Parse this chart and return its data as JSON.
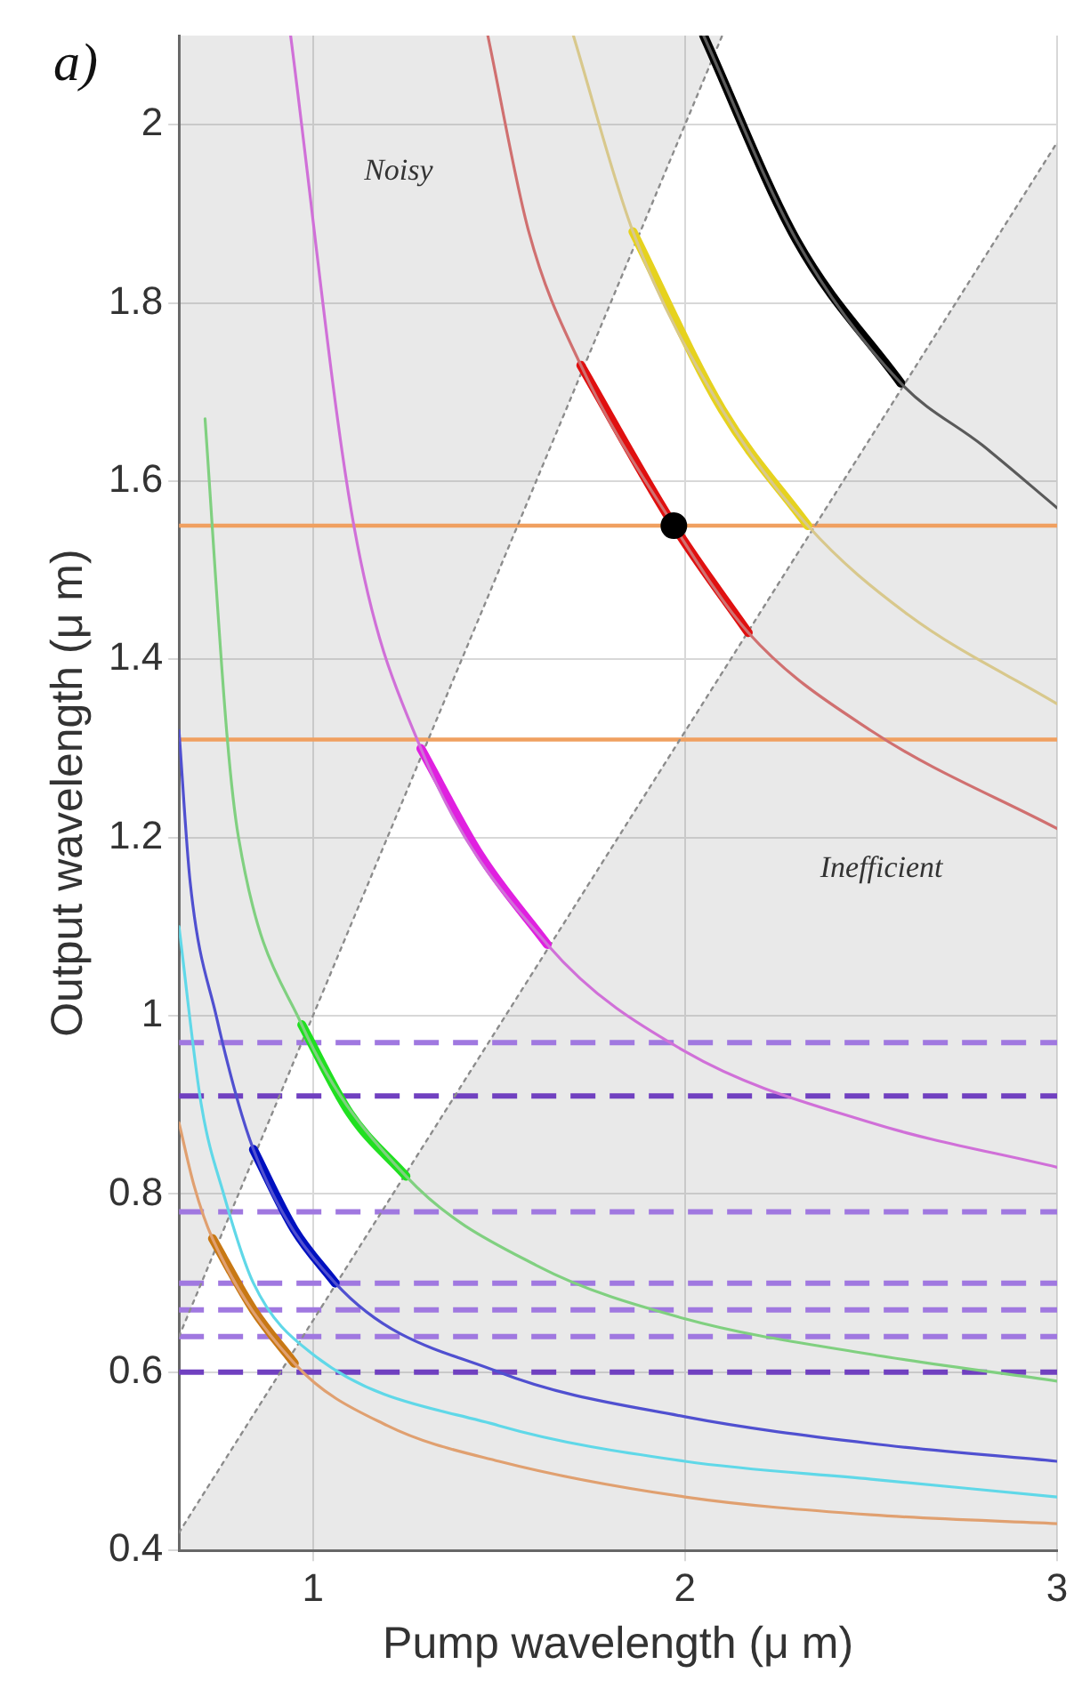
{
  "chart_data": {
    "type": "line",
    "title": "a)",
    "xlabel": "Pump wavelength (μ m)",
    "ylabel": "Output wavelength (μ m)",
    "xlim": [
      0.64,
      3
    ],
    "ylim": [
      0.4,
      2.1
    ],
    "xticks": [
      1,
      2,
      3
    ],
    "yticks": [
      0.4,
      0.6,
      0.8,
      1,
      1.2,
      1.4,
      1.6,
      1.8,
      2
    ],
    "grid": true,
    "legend": false,
    "series": [
      {
        "color": "#8c8c8c",
        "line_style": "dotted",
        "x": [
          0.64,
          2.1
        ],
        "values": [
          0.64,
          2.1
        ],
        "lower": [
          0.64,
          2.1
        ],
        "upper": [
          2.1,
          2.1
        ]
      },
      {
        "color": "#8c8c8c",
        "line_style": "dotted",
        "x": [
          0.64,
          3
        ],
        "values": [
          0.42,
          1.98
        ],
        "lower": [
          0.4,
          0.4
        ],
        "upper": [
          0.42,
          1.98
        ]
      },
      {
        "color": "#5a5a5a",
        "x": [
          2.05,
          2.3,
          2.58,
          2.8,
          3
        ],
        "values": [
          2.1,
          1.87,
          1.71,
          1.64,
          1.57
        ]
      },
      {
        "color": "#d8c88c",
        "x": [
          1.7,
          1.86,
          2.1,
          2.33,
          2.6,
          3
        ],
        "values": [
          2.1,
          1.88,
          1.68,
          1.55,
          1.45,
          1.35
        ]
      },
      {
        "color": "#d07070",
        "x": [
          1.47,
          1.58,
          1.72,
          1.97,
          2.17,
          2.5,
          3
        ],
        "values": [
          2.1,
          1.88,
          1.73,
          1.55,
          1.43,
          1.32,
          1.21
        ]
      },
      {
        "color": "#d070d8",
        "x": [
          0.94,
          1.11,
          1.29,
          1.63,
          2,
          2.5,
          3
        ],
        "values": [
          2.1,
          1.55,
          1.3,
          1.08,
          0.96,
          0.88,
          0.83
        ]
      },
      {
        "color": "#80d080",
        "x": [
          0.71,
          0.77,
          0.8,
          0.97,
          1.25,
          1.6,
          2,
          2.5,
          3
        ],
        "values": [
          1.67,
          1.31,
          1.2,
          0.99,
          0.82,
          0.72,
          0.66,
          0.62,
          0.59
        ]
      },
      {
        "color": "#5050d0",
        "x": [
          0.64,
          0.67,
          0.74,
          0.84,
          1.06,
          1.5,
          2,
          2.5,
          3
        ],
        "values": [
          1.32,
          1.15,
          1,
          0.85,
          0.7,
          0.6,
          0.55,
          0.52,
          0.5
        ]
      },
      {
        "color": "#60d8e8",
        "x": [
          0.64,
          0.7,
          0.76,
          0.84,
          1,
          1.5,
          2,
          2.5,
          3
        ],
        "values": [
          1.1,
          0.9,
          0.8,
          0.7,
          0.62,
          0.54,
          0.5,
          0.48,
          0.46
        ]
      },
      {
        "color": "#e0a070",
        "x": [
          0.64,
          0.68,
          0.73,
          0.95,
          1.2,
          1.5,
          2,
          2.5,
          3
        ],
        "values": [
          0.88,
          0.81,
          0.75,
          0.61,
          0.54,
          0.5,
          0.46,
          0.44,
          0.43
        ]
      },
      {
        "color": "#000000",
        "x": [
          2.05,
          2.3,
          2.58
        ],
        "values": [
          2.1,
          1.87,
          1.71
        ]
      },
      {
        "color": "#e6d21e",
        "x": [
          1.86,
          2.1,
          2.33
        ],
        "values": [
          1.88,
          1.68,
          1.55
        ]
      },
      {
        "color": "#e01010",
        "x": [
          1.72,
          1.97,
          2.17
        ],
        "values": [
          1.73,
          1.55,
          1.43
        ]
      },
      {
        "color": "#e020e0",
        "x": [
          1.29,
          1.45,
          1.63
        ],
        "values": [
          1.3,
          1.18,
          1.08
        ]
      },
      {
        "color": "#20e020",
        "x": [
          0.97,
          1.1,
          1.25
        ],
        "values": [
          0.99,
          0.89,
          0.82
        ]
      },
      {
        "color": "#0010c0",
        "x": [
          0.84,
          0.95,
          1.06
        ],
        "values": [
          0.85,
          0.76,
          0.7
        ]
      },
      {
        "color": "#c87814",
        "x": [
          0.73,
          0.84,
          0.95
        ],
        "values": [
          0.75,
          0.67,
          0.61
        ]
      },
      {
        "type": "scatter",
        "marker": "circle",
        "color": "#000000",
        "x": [
          1.97
        ],
        "values": [
          1.55
        ]
      }
    ],
    "annotations": [
      "Noisy",
      "Inefficient"
    ],
    "ref_lines": [
      {
        "axis": "y",
        "value": 1.55,
        "color": "#f0a060"
      },
      {
        "axis": "y",
        "value": 1.31,
        "color": "#f0a060"
      },
      {
        "axis": "y",
        "value": 0.97,
        "color": "#a078e0",
        "line_style": "dashed"
      },
      {
        "axis": "y",
        "value": 0.91,
        "color": "#7040c0",
        "line_style": "dashed"
      },
      {
        "axis": "y",
        "value": 0.78,
        "color": "#a078e0",
        "line_style": "dashed"
      },
      {
        "axis": "y",
        "value": 0.7,
        "color": "#a078e0",
        "line_style": "dashed"
      },
      {
        "axis": "y",
        "value": 0.67,
        "color": "#a078e0",
        "line_style": "dashed"
      },
      {
        "axis": "y",
        "value": 0.64,
        "color": "#a078e0",
        "line_style": "dashed"
      },
      {
        "axis": "y",
        "value": 0.6,
        "color": "#7040c0",
        "line_style": "dashed"
      }
    ]
  }
}
